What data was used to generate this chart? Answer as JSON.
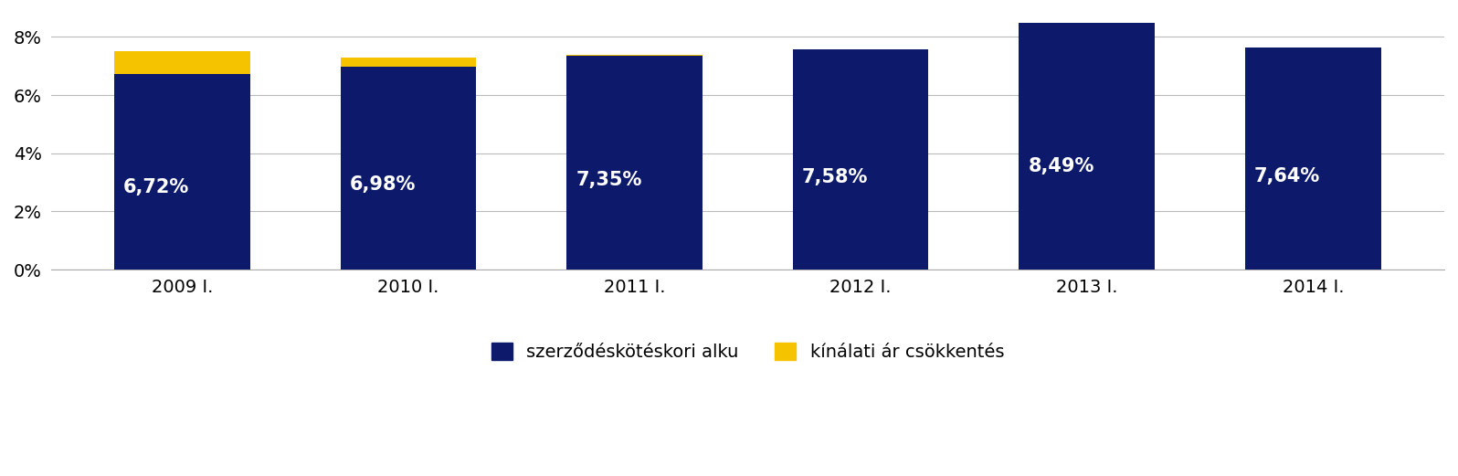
{
  "categories": [
    "2009 I.",
    "2010 I.",
    "2011 I.",
    "2012 I.",
    "2013 I.",
    "2014 I."
  ],
  "navy_values": [
    6.72,
    6.98,
    7.35,
    7.58,
    8.49,
    7.64
  ],
  "yellow_values": [
    0.78,
    0.32,
    0.05,
    0.0,
    0.0,
    0.0
  ],
  "bar_labels": [
    "6,72%",
    "6,98%",
    "7,35%",
    "7,58%",
    "8,49%",
    "7,64%"
  ],
  "navy_color": "#0d1a6b",
  "yellow_color": "#f5c300",
  "legend_navy": "szerződéskötéskori alku",
  "legend_yellow": "kínálati ár csökkentés",
  "yticks": [
    0,
    2,
    4,
    6,
    8
  ],
  "ytick_labels": [
    "0%",
    "2%",
    "4%",
    "6%",
    "8%"
  ],
  "ylim": [
    0,
    8.8
  ],
  "bar_width": 0.6,
  "label_fontsize": 15,
  "tick_fontsize": 14,
  "legend_fontsize": 14,
  "background_color": "#ffffff",
  "grid_color": "#bbbbbb"
}
